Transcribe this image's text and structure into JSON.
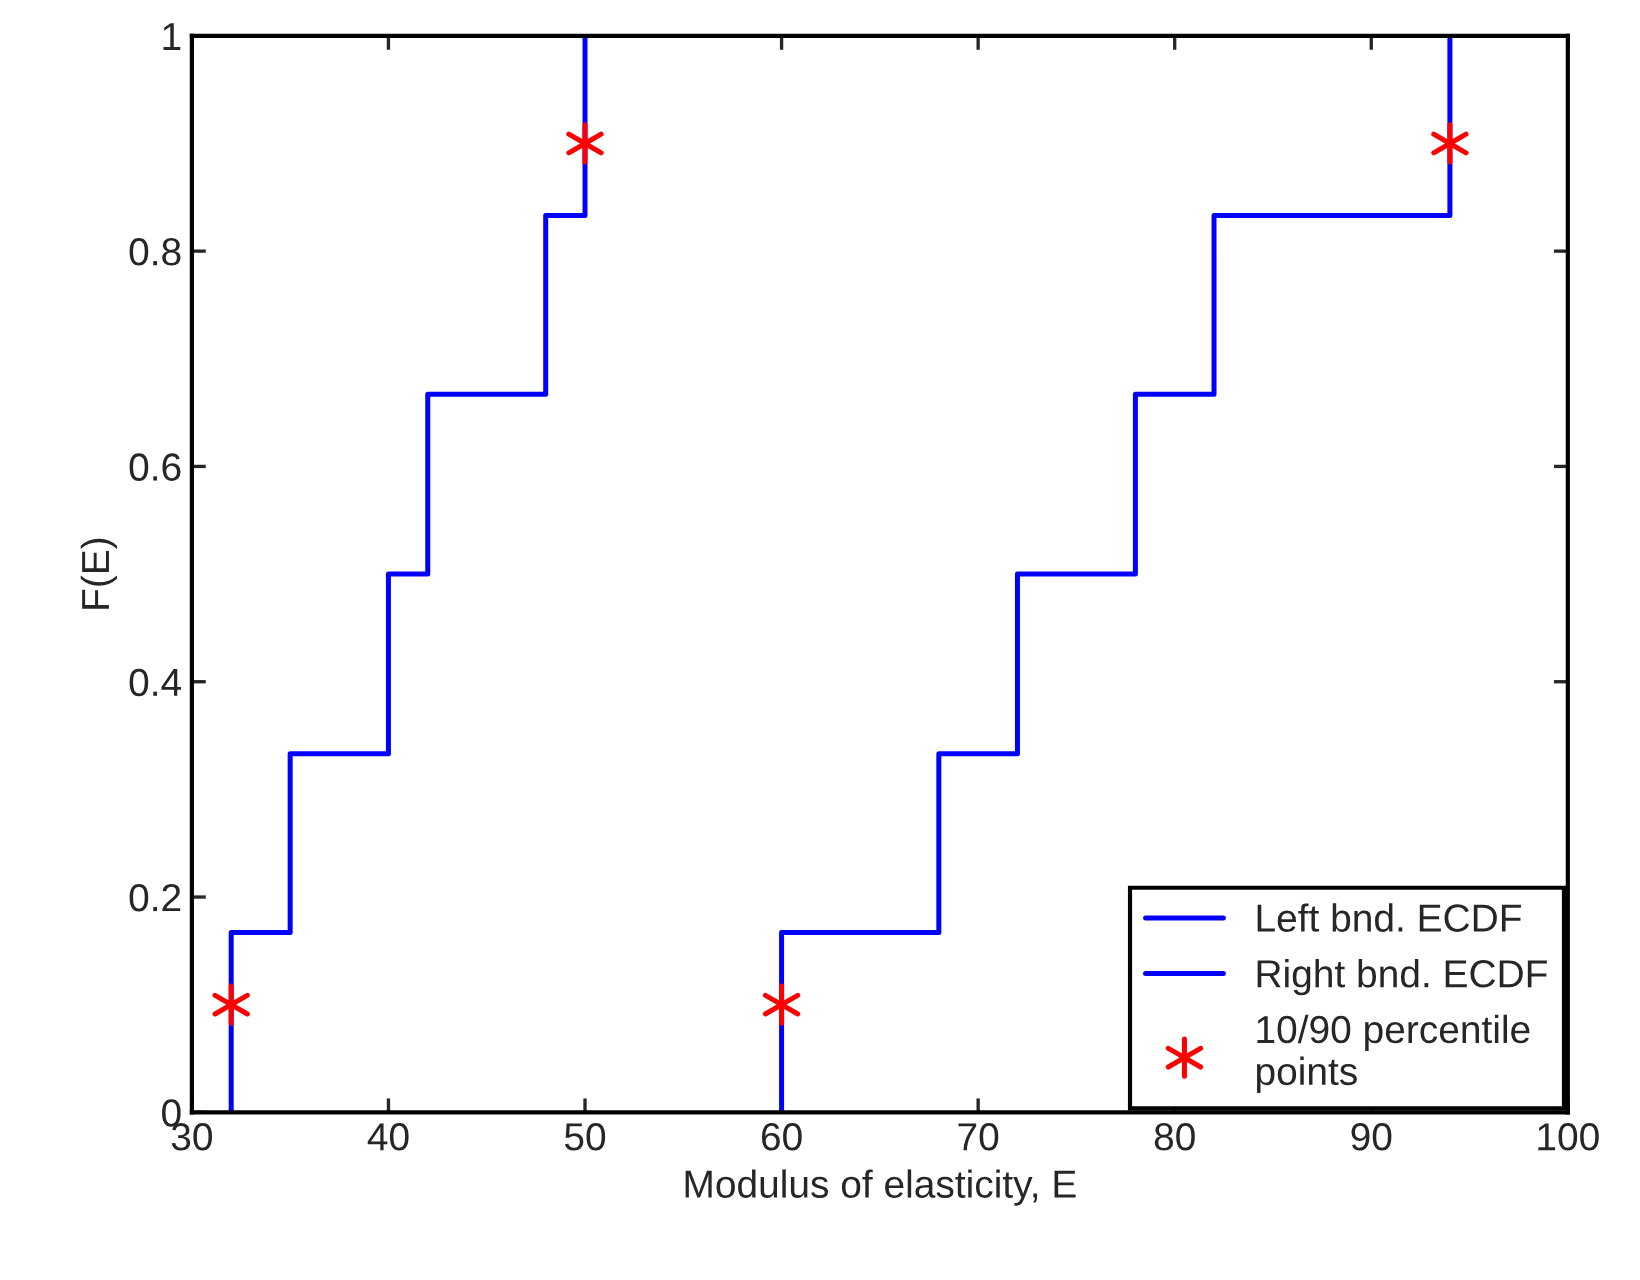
{
  "chart_data": {
    "type": "step",
    "xlabel": "Modulus of elasticity, E",
    "ylabel": "F(E)",
    "series": [
      {
        "name": "Left bnd. ECDF",
        "color": "#0000ff",
        "x": [
          32,
          32,
          35,
          40,
          42,
          48,
          50
        ],
        "values": [
          0,
          0.167,
          0.333,
          0.5,
          0.667,
          0.833,
          1
        ]
      },
      {
        "name": "Right bnd. ECDF",
        "color": "#0000ff",
        "x": [
          60,
          60,
          68,
          72,
          78,
          82,
          94
        ],
        "values": [
          0,
          0.167,
          0.333,
          0.5,
          0.667,
          0.833,
          1
        ]
      },
      {
        "name": "10/90 percentile\npoints",
        "type": "scatter",
        "marker": "cross",
        "color": "#ff0000",
        "x": [
          32,
          50,
          60,
          94
        ],
        "values": [
          0.1,
          0.9,
          0.1,
          0.9
        ]
      }
    ],
    "xlim": [
      30,
      100
    ],
    "xticks": [
      30,
      40,
      50,
      60,
      70,
      80,
      90,
      100
    ],
    "ylim": [
      0,
      1
    ],
    "yticks": [
      0,
      0.2,
      0.4,
      0.6,
      0.8,
      1
    ],
    "grid": false,
    "legend": "bottom right"
  }
}
